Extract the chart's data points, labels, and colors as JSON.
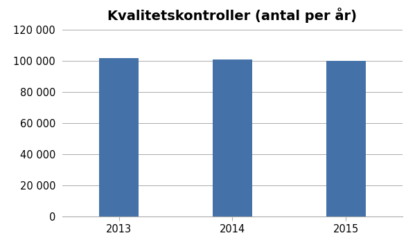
{
  "title": "Kvalitetskontroller (antal per år)",
  "categories": [
    "2013",
    "2014",
    "2015"
  ],
  "values": [
    102000,
    101000,
    100000
  ],
  "bar_color": "#4472a8",
  "ylim": [
    0,
    120000
  ],
  "yticks": [
    0,
    20000,
    40000,
    60000,
    80000,
    100000,
    120000
  ],
  "title_fontsize": 14,
  "tick_fontsize": 10.5,
  "background_color": "#ffffff",
  "grid_color": "#aaaaaa",
  "bar_width": 0.35,
  "xlim": [
    -0.5,
    2.5
  ]
}
